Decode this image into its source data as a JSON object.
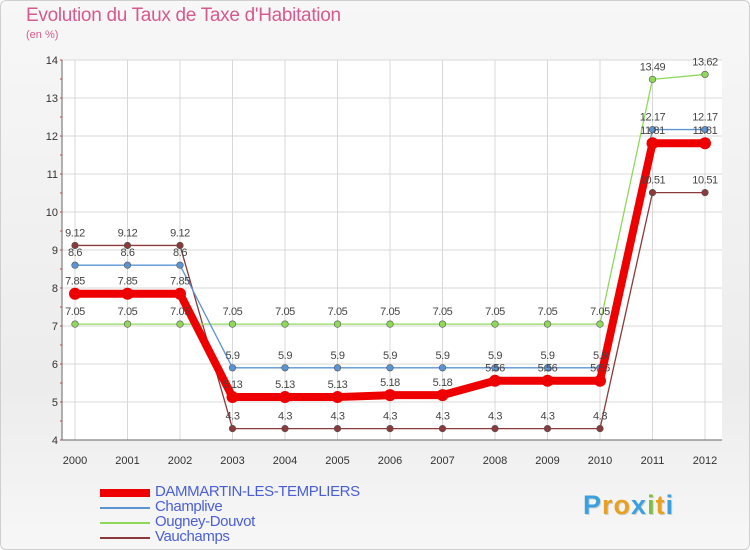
{
  "chart_data": {
    "type": "line",
    "title": "Evolution du Taux de Taxe d'Habitation",
    "subtitle": "(en %)",
    "xlabel": "",
    "ylabel": "",
    "x": [
      "2000",
      "2001",
      "2002",
      "2003",
      "2004",
      "2005",
      "2006",
      "2007",
      "2008",
      "2009",
      "2010",
      "2011",
      "2012"
    ],
    "ylim": [
      4,
      14
    ],
    "yticks": [
      "4",
      "5",
      "6",
      "7",
      "8",
      "9",
      "10",
      "11",
      "12",
      "13",
      "14"
    ],
    "grid": true,
    "series": [
      {
        "name": "DAMMARTIN-LES-TEMPLIERS",
        "color": "#ee0000",
        "values": [
          7.85,
          7.85,
          7.85,
          5.13,
          5.13,
          5.13,
          5.18,
          5.18,
          5.56,
          5.56,
          5.56,
          11.81,
          11.81
        ],
        "labels": [
          "7.85",
          "7.85",
          "7.85",
          "5.13",
          "5.13",
          "5.13",
          "5.18",
          "5.18",
          "5.56",
          "5.56",
          "5.56",
          "11.81",
          "11.81"
        ]
      },
      {
        "name": "Champlive",
        "color": "#5b94d2",
        "values": [
          8.6,
          8.6,
          8.6,
          5.9,
          5.9,
          5.9,
          5.9,
          5.9,
          5.9,
          5.9,
          5.9,
          12.17,
          12.17
        ],
        "labels": [
          "8.6",
          "8.6",
          "8.6",
          "5.9",
          "5.9",
          "5.9",
          "5.9",
          "5.9",
          "5.9",
          "5.9",
          "5.9",
          "12.17",
          "12.17"
        ]
      },
      {
        "name": "Ougney-Douvot",
        "color": "#8fd85a",
        "values": [
          7.05,
          7.05,
          7.05,
          7.05,
          7.05,
          7.05,
          7.05,
          7.05,
          7.05,
          7.05,
          7.05,
          13.49,
          13.62
        ],
        "labels": [
          "7.05",
          "7.05",
          "7.05",
          "7.05",
          "7.05",
          "7.05",
          "7.05",
          "7.05",
          "7.05",
          "7.05",
          "7.05",
          "13.49",
          "13.62"
        ]
      },
      {
        "name": "Vauchamps",
        "color": "#8a3a3a",
        "values": [
          9.12,
          9.12,
          9.12,
          4.3,
          4.3,
          4.3,
          4.3,
          4.3,
          4.3,
          4.3,
          4.3,
          10.51,
          10.51
        ],
        "labels": [
          "9.12",
          "9.12",
          "9.12",
          "4.3",
          "4.3",
          "4.3",
          "4.3",
          "4.3",
          "4.3",
          "4.3",
          "4.3",
          "10.51",
          "10.51"
        ]
      }
    ],
    "legend_position": "bottom-left"
  },
  "branding": {
    "logo_letters": [
      "P",
      "r",
      "o",
      "x",
      "i",
      "t",
      "i"
    ],
    "logo_colors": [
      "#3aa0e0",
      "#e8a020",
      "#e8a020",
      "#3aa0e0",
      "#7bc043",
      "#e8a020",
      "#3aa0e0"
    ]
  }
}
